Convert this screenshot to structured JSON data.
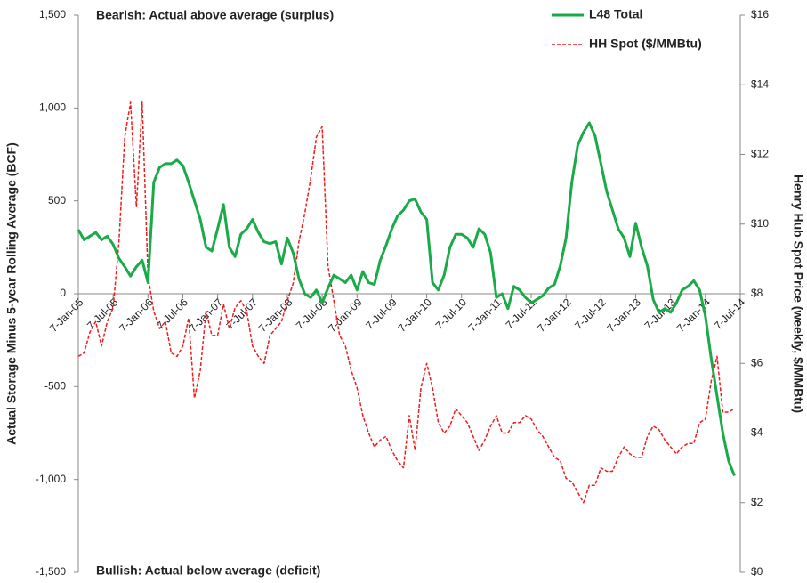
{
  "chart_data": {
    "type": "line",
    "y_label": "Actual Storage Minus 5-year Rolling Average (BCF)",
    "y2_label": "Henry Hub Spot Price (weekly, $/MMBtu)",
    "annotations": [
      "Bearish: Actual above average (surplus)",
      "Bullish: Actual below average (deficit)"
    ],
    "x": [
      "7-Jan-05",
      "7-Feb-05",
      "7-Mar-05",
      "7-Apr-05",
      "7-May-05",
      "7-Jun-05",
      "7-Jul-05",
      "7-Aug-05",
      "7-Sep-05",
      "7-Oct-05",
      "7-Nov-05",
      "7-Dec-05",
      "7-Jan-06",
      "7-Feb-06",
      "7-Mar-06",
      "7-Apr-06",
      "7-May-06",
      "7-Jun-06",
      "7-Jul-06",
      "7-Aug-06",
      "7-Sep-06",
      "7-Oct-06",
      "7-Nov-06",
      "7-Dec-06",
      "7-Jan-07",
      "7-Feb-07",
      "7-Mar-07",
      "7-Apr-07",
      "7-May-07",
      "7-Jun-07",
      "7-Jul-07",
      "7-Aug-07",
      "7-Sep-07",
      "7-Oct-07",
      "7-Nov-07",
      "7-Dec-07",
      "7-Jan-08",
      "7-Feb-08",
      "7-Mar-08",
      "7-Apr-08",
      "7-May-08",
      "7-Jun-08",
      "7-Jul-08",
      "7-Aug-08",
      "7-Sep-08",
      "7-Oct-08",
      "7-Nov-08",
      "7-Dec-08",
      "7-Jan-09",
      "7-Feb-09",
      "7-Mar-09",
      "7-Apr-09",
      "7-May-09",
      "7-Jun-09",
      "7-Jul-09",
      "7-Aug-09",
      "7-Sep-09",
      "7-Oct-09",
      "7-Nov-09",
      "7-Dec-09",
      "7-Jan-10",
      "7-Feb-10",
      "7-Mar-10",
      "7-Apr-10",
      "7-May-10",
      "7-Jun-10",
      "7-Jul-10",
      "7-Aug-10",
      "7-Sep-10",
      "7-Oct-10",
      "7-Nov-10",
      "7-Dec-10",
      "7-Jan-11",
      "7-Feb-11",
      "7-Mar-11",
      "7-Apr-11",
      "7-May-11",
      "7-Jun-11",
      "7-Jul-11",
      "7-Aug-11",
      "7-Sep-11",
      "7-Oct-11",
      "7-Nov-11",
      "7-Dec-11",
      "7-Jan-12",
      "7-Feb-12",
      "7-Mar-12",
      "7-Apr-12",
      "7-May-12",
      "7-Jun-12",
      "7-Jul-12",
      "7-Aug-12",
      "7-Sep-12",
      "7-Oct-12",
      "7-Nov-12",
      "7-Dec-12",
      "7-Jan-13",
      "7-Feb-13",
      "7-Mar-13",
      "7-Apr-13",
      "7-May-13",
      "7-Jun-13",
      "7-Jul-13",
      "7-Aug-13",
      "7-Sep-13",
      "7-Oct-13",
      "7-Nov-13",
      "7-Dec-13",
      "7-Jan-14",
      "7-Feb-14",
      "7-Mar-14",
      "7-Apr-14",
      "7-May-14",
      "7-Jun-14"
    ],
    "series": [
      {
        "name": "L48 Total",
        "color": "#1aaa48",
        "line_style": "solid",
        "values": [
          345,
          290,
          310,
          330,
          290,
          310,
          265,
          190,
          145,
          95,
          145,
          180,
          60,
          600,
          680,
          700,
          700,
          720,
          690,
          600,
          500,
          400,
          250,
          230,
          350,
          480,
          250,
          200,
          320,
          350,
          400,
          330,
          280,
          270,
          280,
          160,
          300,
          220,
          80,
          0,
          -20,
          20,
          -50,
          30,
          100,
          80,
          60,
          100,
          20,
          120,
          60,
          50,
          180,
          260,
          350,
          420,
          450,
          500,
          510,
          440,
          400,
          60,
          20,
          100,
          250,
          320,
          320,
          300,
          250,
          350,
          320,
          220,
          -20,
          0,
          -80,
          40,
          20,
          -20,
          -50,
          -30,
          -10,
          30,
          50,
          150,
          300,
          600,
          800,
          870,
          920,
          850,
          700,
          550,
          450,
          350,
          300,
          200,
          380,
          250,
          150,
          -30,
          -100,
          -80,
          -100,
          -50,
          20,
          40,
          70,
          20,
          -120,
          -350,
          -550,
          -750,
          -900,
          -980
        ]
      },
      {
        "name": "HH Spot ($/MMBtu)",
        "color": "#ee1c1c",
        "line_style": "dashed",
        "axis": "y2",
        "values": [
          6.2,
          6.3,
          6.9,
          7.2,
          6.5,
          7.2,
          7.6,
          9.5,
          12.5,
          13.5,
          10.5,
          13.5,
          8.5,
          7.5,
          7.0,
          7.2,
          6.3,
          6.2,
          6.5,
          7.3,
          5.0,
          5.8,
          7.5,
          6.8,
          6.8,
          7.7,
          7.0,
          7.6,
          7.8,
          7.5,
          6.5,
          6.2,
          6.0,
          6.8,
          7.0,
          7.2,
          7.8,
          8.3,
          9.5,
          10.3,
          11.3,
          12.5,
          12.8,
          8.8,
          7.8,
          6.8,
          6.5,
          5.8,
          5.3,
          4.5,
          4.0,
          3.6,
          3.8,
          3.9,
          3.5,
          3.2,
          3.0,
          4.5,
          3.5,
          5.3,
          6.0,
          5.3,
          4.3,
          4.0,
          4.2,
          4.7,
          4.5,
          4.3,
          3.9,
          3.5,
          3.8,
          4.2,
          4.5,
          4.0,
          4.0,
          4.3,
          4.3,
          4.5,
          4.4,
          4.1,
          3.9,
          3.6,
          3.3,
          3.2,
          2.7,
          2.6,
          2.3,
          2.0,
          2.5,
          2.5,
          3.0,
          2.9,
          2.9,
          3.3,
          3.6,
          3.4,
          3.3,
          3.3,
          3.9,
          4.2,
          4.1,
          3.8,
          3.6,
          3.4,
          3.6,
          3.7,
          3.7,
          4.3,
          4.4,
          5.5,
          6.2,
          4.6,
          4.6,
          4.7
        ]
      }
    ],
    "xlim": [
      "7-Jan-05",
      "7-Jul-14"
    ],
    "xticks": [
      "7-Jan-05",
      "7-Jul-05",
      "7-Jan-06",
      "7-Jul-06",
      "7-Jan-07",
      "7-Jul-07",
      "7-Jan-08",
      "7-Jul-08",
      "7-Jan-09",
      "7-Jul-09",
      "7-Jan-10",
      "7-Jul-10",
      "7-Jan-11",
      "7-Jul-11",
      "7-Jan-12",
      "7-Jul-12",
      "7-Jan-13",
      "7-Jul-13",
      "7-Jan-14",
      "7-Jul-14"
    ],
    "ylim": [
      -1500,
      1500
    ],
    "yticks": [
      {
        "value": -1500,
        "label": "-1,500"
      },
      {
        "value": -1000,
        "label": "-1,000"
      },
      -500,
      0,
      500,
      {
        "value": 1000,
        "label": "1,000"
      },
      {
        "value": 1500,
        "label": "1,500"
      }
    ],
    "y2lim": [
      0,
      16
    ],
    "y2ticks": [
      {
        "value": 0,
        "label": "$0"
      },
      {
        "value": 2,
        "label": "$2"
      },
      {
        "value": 4,
        "label": "$4"
      },
      {
        "value": 6,
        "label": "$6"
      },
      {
        "value": 8,
        "label": "$8"
      },
      {
        "value": 10,
        "label": "$10"
      },
      {
        "value": 12,
        "label": "$12"
      },
      {
        "value": 14,
        "label": "$14"
      },
      {
        "value": 16,
        "label": "$16"
      }
    ],
    "legend": "top-right"
  }
}
